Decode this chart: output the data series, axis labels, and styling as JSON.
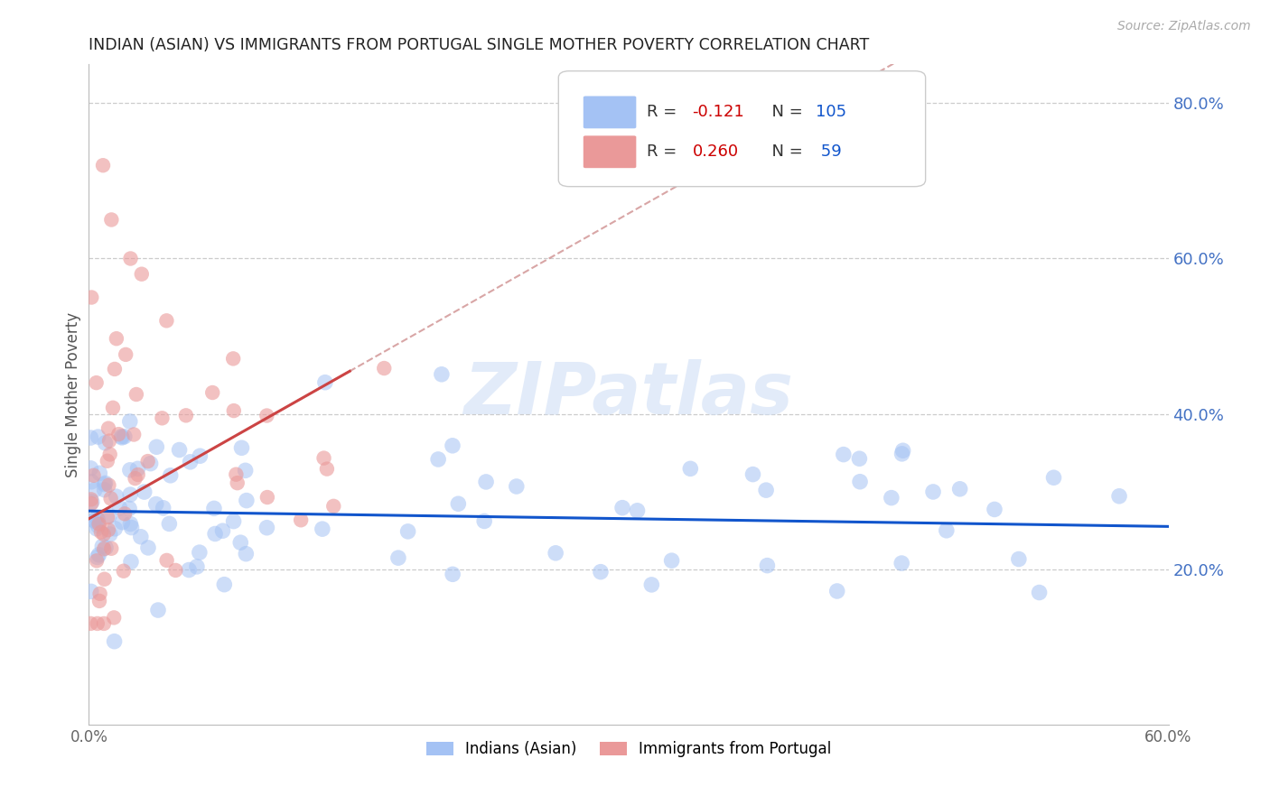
{
  "title": "INDIAN (ASIAN) VS IMMIGRANTS FROM PORTUGAL SINGLE MOTHER POVERTY CORRELATION CHART",
  "source": "Source: ZipAtlas.com",
  "ylabel": "Single Mother Poverty",
  "xlim": [
    0.0,
    0.6
  ],
  "ylim": [
    0.0,
    0.85
  ],
  "blue_color": "#a4c2f4",
  "pink_color": "#ea9999",
  "blue_line_color": "#1155cc",
  "pink_line_color": "#cc4444",
  "dashed_line_color": "#cc8888",
  "legend_blue_R": "-0.121",
  "legend_blue_N": "105",
  "legend_pink_R": "0.260",
  "legend_pink_N": "59",
  "watermark": "ZIPatlas",
  "blue_R": -0.121,
  "pink_R": 0.26,
  "blue_N": 105,
  "pink_N": 59,
  "blue_seed": 42,
  "pink_seed": 7
}
